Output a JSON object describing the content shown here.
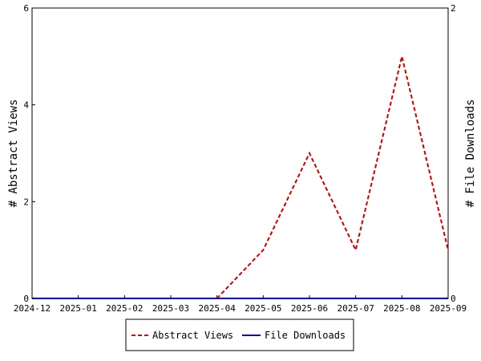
{
  "chart_data": {
    "type": "line",
    "x": [
      "2024-12",
      "2025-01",
      "2025-02",
      "2025-03",
      "2025-04",
      "2025-05",
      "2025-06",
      "2025-07",
      "2025-08",
      "2025-09"
    ],
    "x_tick_labels": [
      "2024-12",
      "2025-01",
      "2025-02",
      "2025-03",
      "2025-04",
      "2025-05",
      "2025-06",
      "2025-07",
      "2025-08",
      "2025-09"
    ],
    "ylabel": "# Abstract Views",
    "y2label": "# File Downloads",
    "ylim": [
      0,
      6
    ],
    "y_ticks": [
      0,
      2,
      4,
      6
    ],
    "y2lim": [
      0,
      2
    ],
    "y2_ticks": [
      0,
      2
    ],
    "grid": false,
    "legend_placement": "bottom-center",
    "series": [
      {
        "name": "Abstract Views",
        "axis": "left",
        "color": "#cc0000",
        "dash": "dashed",
        "x": [
          "2025-04",
          "2025-05",
          "2025-06",
          "2025-07",
          "2025-08",
          "2025-09"
        ],
        "values": [
          0,
          1,
          3,
          1,
          5,
          1
        ]
      },
      {
        "name": "File Downloads",
        "axis": "right",
        "color": "#000099",
        "dash": "solid",
        "x": [
          "2024-12",
          "2025-01",
          "2025-02",
          "2025-03",
          "2025-04",
          "2025-05",
          "2025-06",
          "2025-07",
          "2025-08",
          "2025-09"
        ],
        "values": [
          0,
          0,
          0,
          0,
          0,
          0,
          0,
          0,
          0,
          0
        ]
      }
    ]
  }
}
